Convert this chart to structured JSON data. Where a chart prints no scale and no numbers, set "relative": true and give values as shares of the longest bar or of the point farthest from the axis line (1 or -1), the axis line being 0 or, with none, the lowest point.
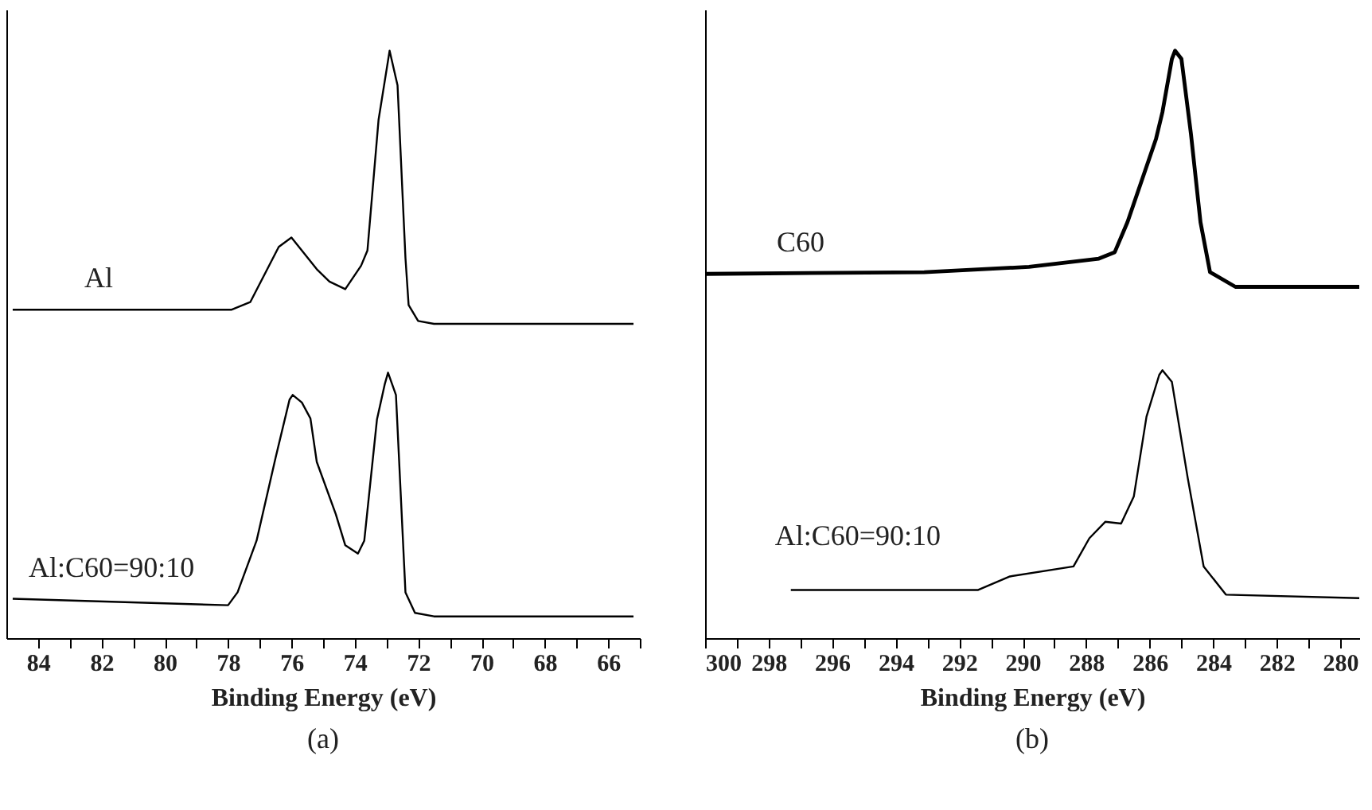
{
  "chart_data": [
    {
      "type": "line",
      "relative": true,
      "xlabel": "Binding Energy (eV)",
      "annotations": [
        "(a)"
      ],
      "tick_labels": "x",
      "xlim": [
        85,
        65
      ],
      "xticks": [
        {
          "value": 65,
          "label": null
        },
        66,
        {
          "value": 67,
          "label": null
        },
        68,
        {
          "value": 69,
          "label": null
        },
        70,
        {
          "value": 71,
          "label": null
        },
        72,
        {
          "value": 73,
          "label": null
        },
        74,
        {
          "value": 75,
          "label": null
        },
        76,
        {
          "value": 77,
          "label": null
        },
        78,
        {
          "value": 79,
          "label": null
        },
        80,
        {
          "value": 81,
          "label": null
        },
        82,
        {
          "value": 83,
          "label": null
        },
        84
      ],
      "series": [
        {
          "name": "Al",
          "color": "#000000",
          "x": [
            84.8,
            77.9,
            77.3,
            76.4,
            76.0,
            75.2,
            74.8,
            74.3,
            73.8,
            73.6,
            73.25,
            72.9,
            72.65,
            72.4,
            72.3,
            72.0,
            71.5,
            65.2
          ],
          "values": [
            0.559,
            0.559,
            0.572,
            0.666,
            0.682,
            0.628,
            0.607,
            0.594,
            0.634,
            0.66,
            0.882,
            1.0,
            0.941,
            0.647,
            0.567,
            0.54,
            0.535,
            0.535
          ]
        },
        {
          "name": "Al:C60=90:10",
          "color": "#000000",
          "x": [
            84.8,
            78.0,
            77.7,
            77.1,
            76.5,
            76.06,
            75.96,
            75.67,
            75.4,
            75.2,
            74.6,
            74.3,
            73.9,
            73.7,
            73.3,
            73.05,
            72.95,
            72.7,
            72.4,
            72.1,
            71.5,
            65.2
          ],
          "values": [
            0.067,
            0.056,
            0.078,
            0.166,
            0.307,
            0.406,
            0.414,
            0.401,
            0.374,
            0.3,
            0.211,
            0.158,
            0.144,
            0.166,
            0.372,
            0.433,
            0.452,
            0.414,
            0.078,
            0.043,
            0.037,
            0.037
          ]
        }
      ]
    },
    {
      "type": "line",
      "relative": true,
      "xlabel": "Binding Energy (eV)",
      "annotations": [
        "(b)"
      ],
      "tick_labels": "x",
      "xlim": [
        300,
        279.4
      ],
      "xticks": [
        280,
        {
          "value": 281,
          "label": null
        },
        282,
        {
          "value": 283,
          "label": null
        },
        284,
        {
          "value": 285,
          "label": null
        },
        286,
        {
          "value": 287,
          "label": null
        },
        288,
        {
          "value": 289,
          "label": null
        },
        290,
        {
          "value": 291,
          "label": null
        },
        292,
        {
          "value": 293,
          "label": null
        },
        294,
        {
          "value": 295,
          "label": null
        },
        296,
        {
          "value": 297,
          "label": null
        },
        298,
        {
          "value": 299,
          "label": null
        },
        300
      ],
      "series": [
        {
          "name": "C60",
          "color": "#000000",
          "x": [
            300,
            293.1,
            289.8,
            287.6,
            287.1,
            286.7,
            285.8,
            285.6,
            285.3,
            285.2,
            285.0,
            284.7,
            284.4,
            284.1,
            283.3,
            279.4
          ],
          "values": [
            0.62,
            0.623,
            0.632,
            0.646,
            0.657,
            0.708,
            0.85,
            0.895,
            0.986,
            1.0,
            0.986,
            0.858,
            0.708,
            0.623,
            0.598,
            0.598
          ]
        },
        {
          "name": "Al:C60=90:10",
          "color": "#000000",
          "x": [
            297.3,
            291.4,
            290.4,
            288.4,
            287.9,
            287.4,
            286.9,
            286.5,
            286.1,
            285.7,
            285.6,
            285.3,
            284.8,
            284.3,
            283.6,
            279.4
          ],
          "values": [
            0.082,
            0.082,
            0.105,
            0.122,
            0.17,
            0.198,
            0.195,
            0.241,
            0.377,
            0.448,
            0.456,
            0.436,
            0.272,
            0.122,
            0.074,
            0.068
          ]
        }
      ]
    }
  ]
}
